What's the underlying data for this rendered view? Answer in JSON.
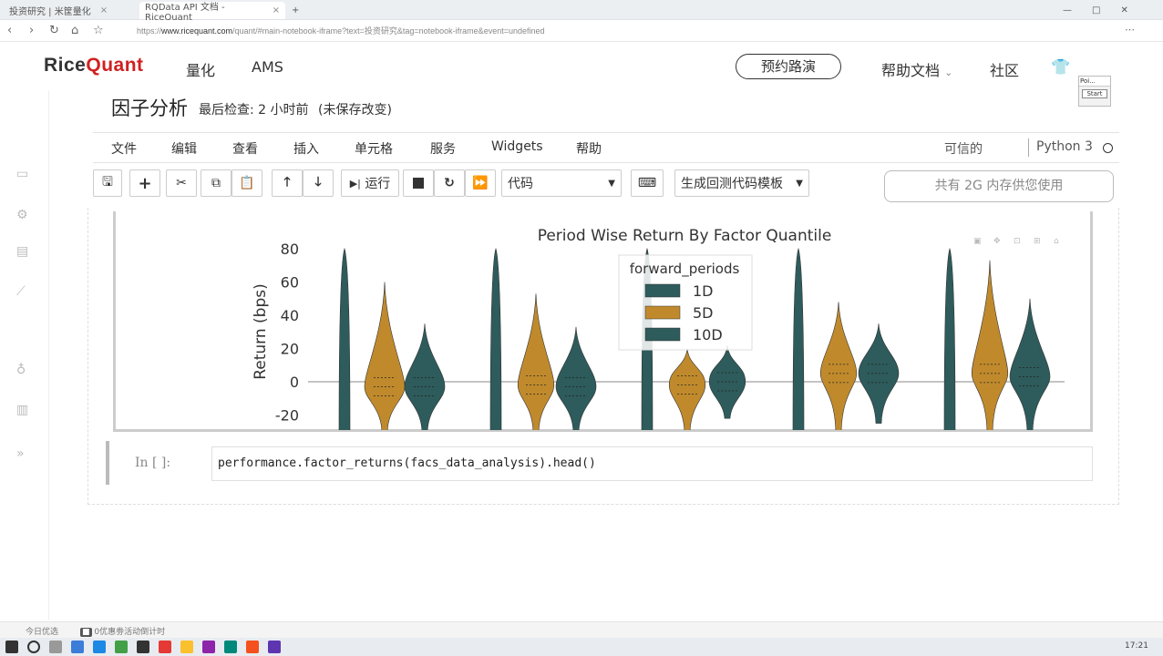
{
  "browser": {
    "tabs": [
      {
        "title": "投资研究 | 米筐量化",
        "active": false
      },
      {
        "title": "RQData API 文档 - RiceQuant",
        "active": true
      }
    ],
    "new_tab": "+",
    "url_prefix": "https://",
    "url_domain": "www.ricequant.com",
    "url_rest": "/quant/#main-notebook-iframe?text=投资研究&tag=notebook-iframe&event=undefined"
  },
  "site": {
    "logo_a": "Rice",
    "logo_b": "Quant",
    "nav": [
      "量化",
      "AMS"
    ],
    "demo_button": "预约路演",
    "help_docs": "帮助文档",
    "community": "社区",
    "popup_title": "Poi...",
    "popup_start": "Start"
  },
  "notebook": {
    "title": "因子分析",
    "checkpoint": "最后检查: 2 小时前",
    "unsaved": "(未保存改变)",
    "menu": [
      "文件",
      "编辑",
      "查看",
      "插入",
      "单元格",
      "服务",
      "Widgets",
      "帮助"
    ],
    "trusted": "可信的",
    "kernel": "Python 3",
    "toolbar": {
      "run_label": "运行",
      "cell_type": "代码",
      "template": "生成回测代码模板",
      "memory": "共有 2G 内存供您使用"
    },
    "input_prompt": "In  [  ]:",
    "code": "performance.factor_returns(facs_data_analysis).head()"
  },
  "chart_data": {
    "type": "violin",
    "title": "Period Wise Return By Factor Quantile",
    "ylabel": "Return (bps)",
    "yticks": [
      80,
      60,
      40,
      20,
      0,
      -20
    ],
    "ylim": [
      -30,
      82
    ],
    "legend": {
      "title": "forward_periods",
      "entries": [
        "1D",
        "5D",
        "10D"
      ],
      "placement": "top-center"
    },
    "colors": {
      "1D": "#2e5b5b",
      "5D": "#c08a2c",
      "10D": "#2e5b5b"
    },
    "groups": [
      {
        "1D": {
          "min": -30,
          "max": 80,
          "width": 0.4
        },
        "5D": {
          "min": -30,
          "max": 60,
          "width": 1.0,
          "peak": -3
        },
        "10D": {
          "min": -30,
          "max": 35,
          "width": 1.0,
          "peak": -3
        }
      },
      {
        "1D": {
          "min": -30,
          "max": 80,
          "width": 0.4
        },
        "5D": {
          "min": -30,
          "max": 53,
          "width": 0.9,
          "peak": -2
        },
        "10D": {
          "min": -30,
          "max": 33,
          "width": 1.0,
          "peak": -3
        }
      },
      {
        "1D": {
          "min": -30,
          "max": 80,
          "width": 0.4
        },
        "5D": {
          "min": -30,
          "max": 20,
          "width": 0.9,
          "peak": -2
        },
        "10D": {
          "min": -22,
          "max": 22,
          "width": 0.9,
          "peak": 0
        }
      },
      {
        "1D": {
          "min": -30,
          "max": 80,
          "width": 0.4
        },
        "5D": {
          "min": -30,
          "max": 48,
          "width": 0.9,
          "peak": 5
        },
        "10D": {
          "min": -25,
          "max": 35,
          "width": 1.0,
          "peak": 5
        }
      },
      {
        "1D": {
          "min": -30,
          "max": 80,
          "width": 0.4
        },
        "5D": {
          "min": -30,
          "max": 73,
          "width": 0.9,
          "peak": 5
        },
        "10D": {
          "min": -30,
          "max": 50,
          "width": 1.0,
          "peak": 3
        }
      }
    ]
  },
  "statusbar": {
    "left": "今日优选",
    "msg": "0优惠劵活动倒计时"
  },
  "taskbar": {
    "time": "17:21"
  }
}
